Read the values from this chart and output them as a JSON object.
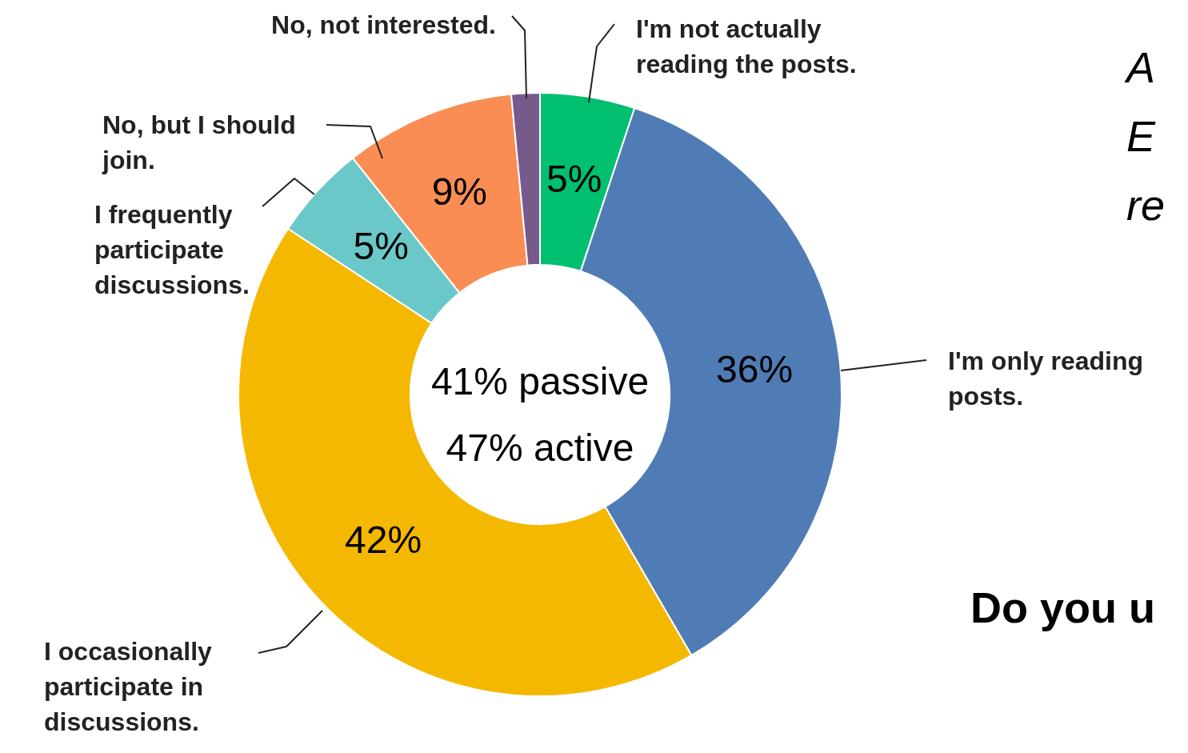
{
  "chart_data": {
    "type": "donut",
    "categories": [
      "I'm not actually reading the posts.",
      "I'm only reading posts.",
      "I occasionally participate in discussions.",
      "I frequently participate discussions.",
      "No, but I should join.",
      "No, not interested."
    ],
    "values": [
      5,
      36,
      42,
      5,
      9,
      1.5
    ],
    "colors": [
      "#00bf6f",
      "#507cb6",
      "#f5b800",
      "#6bc8c8",
      "#f98d54",
      "#745b8c"
    ],
    "value_labels": [
      "5%",
      "36%",
      "42%",
      "5%",
      "9%",
      null
    ],
    "annotations": [
      "41% passive",
      "47% active",
      "A",
      "E",
      "re",
      "Do you u"
    ],
    "legend": false
  }
}
